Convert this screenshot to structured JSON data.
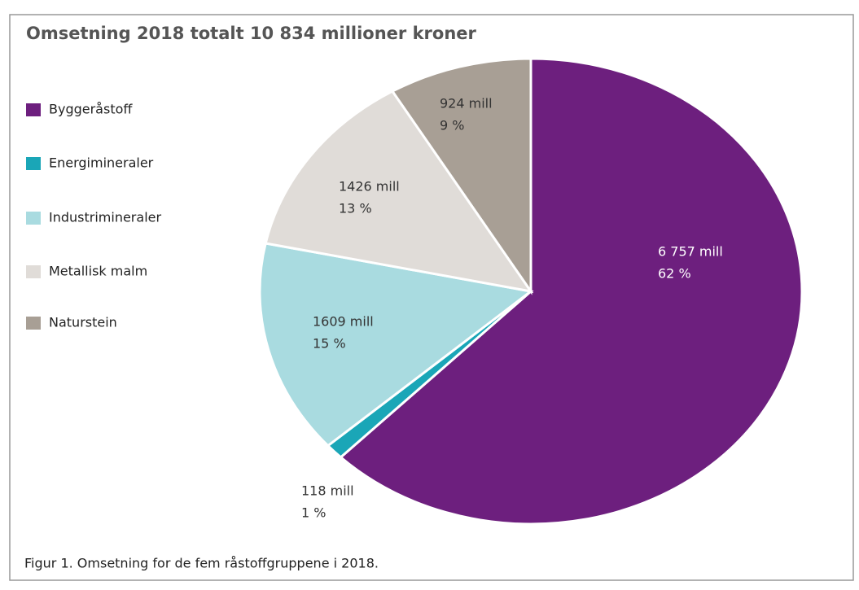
{
  "chart_data": {
    "type": "pie",
    "title": "Omsetning 2018 totalt 10 834 millioner kroner",
    "caption": "Figur 1. Omsetning for de fem råstoffgruppene i 2018.",
    "categories": [
      "Byggeråstoff",
      "Energimineraler",
      "Industrimineraler",
      "Metallisk malm",
      "Naturstein"
    ],
    "values": [
      6757,
      118,
      1609,
      1426,
      924
    ],
    "value_labels": [
      "6 757 mill",
      "118 mill",
      "1609 mill",
      "1426 mill",
      "924 mill"
    ],
    "percentages": [
      62,
      1,
      15,
      13,
      9
    ],
    "percentage_labels": [
      "62 %",
      "1 %",
      "15 %",
      "13 %",
      "9 %"
    ],
    "colors": [
      "#6d1f7e",
      "#1aa6b7",
      "#a9dbe0",
      "#e0dcd8",
      "#a89f95"
    ],
    "legend": "left"
  }
}
